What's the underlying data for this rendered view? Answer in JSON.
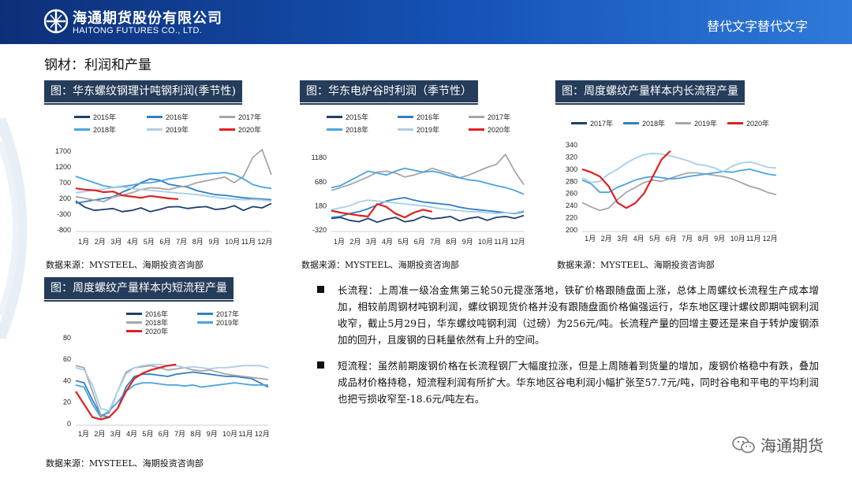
{
  "header": {
    "company_cn": "海通期货股份有限公司",
    "company_en": "HAITONG FUTURES CO., LTD.",
    "right_text": "替代文字替代文字"
  },
  "page_title": "钢材：利润和产量",
  "panels": [
    {
      "title": "图：华东螺纹钢理计吨钢利润(季节性)",
      "source": "数据来源：MYSTEEL、海期投资咨询部"
    },
    {
      "title": "图：华东电炉谷时利润（季节性）",
      "source": "数据来源：MYSTEEL、海期投资咨询部"
    },
    {
      "title": "图：周度螺纹产量样本内长流程产量",
      "source": "数据来源：MYSTEEL、海期投资咨询部"
    },
    {
      "title": "图：周度螺纹产量样本内短流程产量",
      "source": "数据来源：MYSTEEL、海期投资咨询部"
    }
  ],
  "paragraphs": [
    "长流程：上周准一级冶金焦第三轮50元提涨落地，铁矿价格跟随盘面上涨，总体上周螺纹长流程生产成本增加，相较前周钢材吨钢利润，螺纹钢现货价格并没有跟随盘面价格偏强运行，华东地区理计螺纹即期吨钢利润收窄，截止5月29日，华东螺纹吨钢利润（过磅）为256元/吨。长流程产量的回增主要还是来自于转炉废钢添加的回升，且废钢的日耗量依然有上升的空间。",
    "短流程：虽然前期废钢价格在长流程钢厂大幅度拉涨，但是上周随着到货量的增加，废钢价格稳中有跌，叠加成品材价格持稳，短流程利润有所扩大。华东地区谷电利润小幅扩张至57.7元/吨，同时谷电和平电的平均利润也把亏损收窄至-18.6元/吨左右。"
  ],
  "watermark": "海通期货",
  "colors": {
    "2015": "#1f3f6e",
    "2016": "#2f7fc4",
    "2017": "#a6a6a6",
    "2018": "#4aa3df",
    "2019": "#a9cdea",
    "2020": "#e02020"
  },
  "chart_data": [
    {
      "type": "line",
      "title": "图：华东螺纹钢理计吨钢利润(季节性)",
      "x_ticks": [
        "1月",
        "2月",
        "3月",
        "4月",
        "5月",
        "6月",
        "7月",
        "8月",
        "9月",
        "10月",
        "11月",
        "12月"
      ],
      "y_ticks": [
        1700,
        1200,
        700,
        200,
        -300,
        -800
      ],
      "ylim": [
        -800,
        1800
      ],
      "series": [
        {
          "name": "2015年",
          "values": [
            120,
            -80,
            -180,
            -150,
            -120,
            -220,
            -180,
            -100,
            -220,
            -150,
            -70,
            -60,
            -120,
            -80,
            -60,
            -150,
            -120,
            -30,
            -180,
            -60,
            -100,
            40
          ]
        },
        {
          "name": "2016年",
          "values": [
            50,
            100,
            150,
            200,
            250,
            400,
            520,
            700,
            820,
            780,
            650,
            600,
            560,
            450,
            380,
            320,
            300,
            260,
            220,
            200,
            180,
            160
          ]
        },
        {
          "name": "2017年",
          "values": [
            260,
            200,
            150,
            100,
            240,
            300,
            380,
            480,
            540,
            520,
            480,
            560,
            600,
            700,
            760,
            820,
            880,
            700,
            900,
            1500,
            1750,
            950
          ]
        },
        {
          "name": "2018年",
          "values": [
            900,
            800,
            700,
            600,
            550,
            580,
            620,
            680,
            700,
            750,
            820,
            860,
            900,
            940,
            980,
            1000,
            1020,
            960,
            820,
            640,
            560,
            520
          ]
        },
        {
          "name": "2019年",
          "values": [
            380,
            420,
            460,
            500,
            540,
            560,
            520,
            480,
            460,
            430,
            400,
            370,
            350,
            320,
            280,
            240,
            200,
            180,
            160,
            170,
            150,
            120
          ]
        },
        {
          "name": "2020年",
          "values": [
            520,
            480,
            460,
            400,
            420,
            300,
            260,
            220,
            280,
            240,
            200,
            180
          ]
        }
      ]
    },
    {
      "type": "line",
      "title": "图：华东电炉谷时利润（季节性）",
      "x_ticks": [
        "1月",
        "2月",
        "3月",
        "4月",
        "5月",
        "6月",
        "7月",
        "8月",
        "9月",
        "10月",
        "11月",
        "12月"
      ],
      "y_ticks": [
        1180,
        680,
        180,
        -320
      ],
      "ylim": [
        -320,
        1380
      ],
      "series": [
        {
          "name": "2015年",
          "values": [
            -80,
            -60,
            -120,
            -150,
            -80,
            -160,
            -100,
            -60,
            -150,
            -120,
            -40,
            -90,
            -70,
            -40,
            -130,
            -80,
            -50,
            -120,
            -60,
            -40,
            -80,
            -20
          ]
        },
        {
          "name": "2016年",
          "values": [
            -60,
            -40,
            20,
            60,
            120,
            200,
            280,
            320,
            350,
            300,
            260,
            240,
            220,
            200,
            150,
            120,
            100,
            80,
            60,
            40,
            20,
            60
          ]
        },
        {
          "name": "2017年",
          "values": [
            500,
            560,
            620,
            700,
            780,
            880,
            900,
            860,
            780,
            820,
            880,
            960,
            900,
            850,
            760,
            820,
            900,
            980,
            1040,
            1250,
            900,
            620
          ]
        },
        {
          "name": "2018年",
          "values": [
            560,
            600,
            700,
            800,
            900,
            860,
            820,
            900,
            960,
            920,
            880,
            900,
            860,
            800,
            760,
            720,
            700,
            650,
            600,
            560,
            500,
            420
          ]
        },
        {
          "name": "2019年",
          "values": [
            100,
            140,
            180,
            260,
            300,
            280,
            260,
            240,
            220,
            200,
            180,
            150,
            120,
            100,
            80,
            60,
            60,
            40,
            20,
            40,
            30,
            80
          ]
        },
        {
          "name": "2020年",
          "values": [
            80,
            40,
            10,
            -20,
            -40,
            220,
            160,
            20,
            -60,
            40,
            100,
            60
          ]
        }
      ]
    },
    {
      "type": "line",
      "title": "图：周度螺纹产量样本内长流程产量",
      "x_ticks": [
        "1月",
        "2月",
        "3月",
        "4月",
        "5月",
        "6月",
        "7月",
        "8月",
        "9月",
        "10月",
        "11月",
        "12月"
      ],
      "y_ticks": [
        340,
        320,
        300,
        280,
        260,
        240,
        220,
        200
      ],
      "ylim": [
        200,
        340
      ],
      "series": [
        {
          "name": "2017年",
          "values": [
            245,
            238,
            232,
            236,
            250,
            262,
            270,
            278,
            282,
            280,
            285,
            290,
            294,
            294,
            292,
            290,
            288,
            284,
            278,
            272,
            268,
            262,
            258
          ]
        },
        {
          "name": "2018年",
          "values": [
            282,
            276,
            262,
            262,
            270,
            276,
            282,
            286,
            288,
            286,
            284,
            285,
            288,
            290,
            292,
            294,
            296,
            295,
            298,
            300,
            296,
            292,
            290
          ]
        },
        {
          "name": "2019年",
          "values": [
            286,
            278,
            280,
            292,
            300,
            310,
            318,
            324,
            326,
            325,
            322,
            318,
            314,
            308,
            306,
            302,
            296,
            305,
            310,
            312,
            308,
            303,
            302
          ]
        },
        {
          "name": "2020年",
          "values": [
            300,
            295,
            288,
            272,
            245,
            236,
            244,
            260,
            288,
            316,
            330
          ]
        }
      ]
    },
    {
      "type": "line",
      "title": "图：周度螺纹产量样本内短流程产量",
      "x_ticks": [
        "1月",
        "2月",
        "3月",
        "4月",
        "5月",
        "6月",
        "7月",
        "8月",
        "9月",
        "10月",
        "11月",
        "12月"
      ],
      "y_ticks": [
        80,
        60,
        40,
        20,
        0
      ],
      "ylim": [
        0,
        85
      ],
      "series": [
        {
          "name": "2016年",
          "values": [
            40,
            38,
            22,
            8,
            6,
            14,
            34,
            44,
            46,
            46,
            45,
            44,
            46,
            47,
            48,
            47,
            46,
            45,
            44,
            44,
            43,
            42,
            38,
            34
          ]
        },
        {
          "name": "2017年",
          "values": [
            54,
            52,
            30,
            8,
            10,
            30,
            48,
            52,
            53,
            54,
            52,
            50,
            51,
            52,
            50,
            49,
            50,
            48,
            46,
            45,
            44,
            43,
            42,
            41
          ]
        },
        {
          "name": "2018年",
          "values": [
            36,
            34,
            18,
            6,
            12,
            20,
            30,
            36,
            38,
            38,
            37,
            36,
            36,
            35,
            36,
            34,
            35,
            36,
            37,
            38,
            37,
            36,
            36,
            36
          ]
        },
        {
          "name": "2019年",
          "values": [
            52,
            50,
            36,
            14,
            12,
            30,
            46,
            52,
            54,
            55,
            55,
            54,
            54,
            52,
            53,
            52,
            51,
            52,
            52,
            53,
            54,
            54,
            54,
            52
          ]
        },
        {
          "name": "2020年",
          "values": [
            30,
            18,
            6,
            4,
            6,
            14,
            30,
            42,
            47,
            50,
            52,
            54,
            55
          ]
        }
      ]
    }
  ]
}
